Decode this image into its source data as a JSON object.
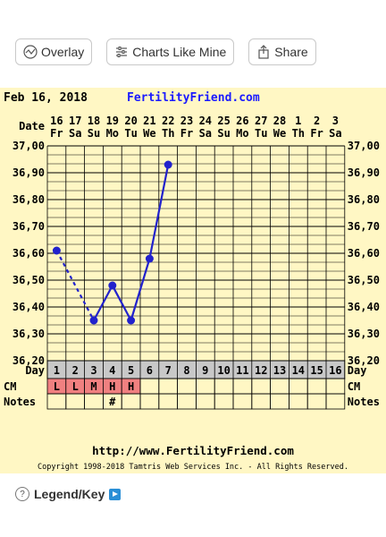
{
  "toolbar": {
    "overlay_label": "Overlay",
    "charts_like_mine_label": "Charts Like Mine",
    "share_label": "Share"
  },
  "chart_data": {
    "type": "line",
    "header_date": "Feb 16, 2018",
    "site_name": "FertilityFriend.com",
    "date_row_label": "Date",
    "dates": [
      "16",
      "17",
      "18",
      "19",
      "20",
      "21",
      "22",
      "23",
      "24",
      "25",
      "26",
      "27",
      "28",
      "1",
      "2",
      "3"
    ],
    "weekdays": [
      "Fr",
      "Sa",
      "Su",
      "Mo",
      "Tu",
      "We",
      "Th",
      "Fr",
      "Sa",
      "Su",
      "Mo",
      "Tu",
      "We",
      "Th",
      "Fr",
      "Sa"
    ],
    "yticks": [
      "37,00",
      "36,90",
      "36,80",
      "36,70",
      "36,60",
      "36,50",
      "36,40",
      "36,30",
      "36,20"
    ],
    "ylim": [
      36.2,
      37.0
    ],
    "day_label": "Day",
    "days": [
      "1",
      "2",
      "3",
      "4",
      "5",
      "6",
      "7",
      "8",
      "9",
      "10",
      "11",
      "12",
      "13",
      "14",
      "15",
      "16"
    ],
    "cm_label": "CM",
    "cm": [
      "L",
      "L",
      "M",
      "H",
      "H",
      "",
      "",
      "",
      "",
      "",
      "",
      "",
      "",
      "",
      "",
      ""
    ],
    "notes_label": "Notes",
    "notes": [
      "",
      "",
      "",
      "#",
      "",
      "",
      "",
      "",
      "",
      "",
      "",
      "",
      "",
      "",
      "",
      ""
    ],
    "temperatures": [
      {
        "day": 1,
        "value": 36.61
      },
      {
        "day": 3,
        "value": 36.35
      },
      {
        "day": 4,
        "value": 36.48
      },
      {
        "day": 5,
        "value": 36.35
      },
      {
        "day": 6,
        "value": 36.58
      },
      {
        "day": 7,
        "value": 36.93
      }
    ],
    "dashed_segments": [
      [
        1,
        3
      ]
    ],
    "footer_url": "http://www.FertilityFriend.com",
    "copyright": "Copyright 1998-2018 Tamtris Web Services Inc. - All Rights Reserved.",
    "colors": {
      "background": "#fff7c4",
      "line": "#2222cc",
      "cm_fill": "#f08080",
      "day_row_fill": "#c8c8c8",
      "site_name": "#1a1aff"
    }
  },
  "legend": {
    "label": "Legend/Key",
    "question_glyph": "?"
  }
}
